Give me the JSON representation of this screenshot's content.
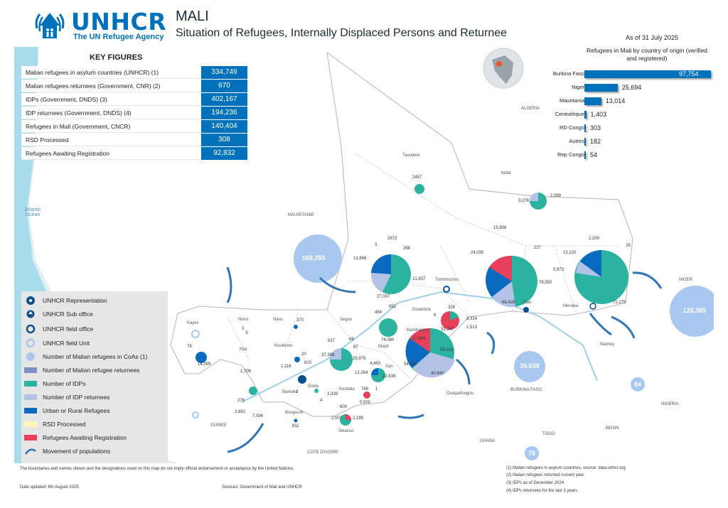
{
  "header": {
    "brand": "UNHCR",
    "tagline": "The UN Refugee Agency",
    "country": "MALI",
    "subtitle": "Situation of Refugees, Internally Displaced Persons and Returnee",
    "as_of": "As of 31 July 2025"
  },
  "key_figures": {
    "title": "KEY FIGURES",
    "rows": [
      {
        "label": "Malian refugees in asylum countries (UNHCR) (1)",
        "value": "334,749"
      },
      {
        "label": "Malian refugees returnees (Government, CNR) (2)",
        "value": "670"
      },
      {
        "label": "IDPs (Government, DNDS) (3)",
        "value": "402,167"
      },
      {
        "label": "IDP returnees (Government, DNDS) (4)",
        "value": "194,236"
      },
      {
        "label": "Refugees in Mali (Government, CNCR)",
        "value": "140,404"
      },
      {
        "label": "RSD Processed",
        "value": "308"
      },
      {
        "label": "Refugees Awaiting Registration",
        "value": "92,832"
      }
    ]
  },
  "origin_chart": {
    "title": "Refugees in Mali by country of origin (verified and registered)",
    "rows": [
      {
        "label": "Burkina Faso",
        "value": "97,754",
        "amount": 97754
      },
      {
        "label": "Niger",
        "value": "25,694",
        "amount": 25694
      },
      {
        "label": "Mauritania",
        "value": "13,014",
        "amount": 13014
      },
      {
        "label": "Centrafrique",
        "value": "1,403",
        "amount": 1403
      },
      {
        "label": "RD Congo",
        "value": "303",
        "amount": 303
      },
      {
        "label": "Autres",
        "value": "182",
        "amount": 182
      },
      {
        "label": "Rep Congo",
        "value": "54",
        "amount": 54
      }
    ]
  },
  "legend": {
    "items": [
      {
        "label": "UNHCR Representation"
      },
      {
        "label": "UNHCR Sub office"
      },
      {
        "label": "UNHCR field office"
      },
      {
        "label": "UNHCR field Unit"
      },
      {
        "label": "Number of Malian refugees in CoAs (1)"
      },
      {
        "label": "Number of Malian refugee returnees"
      },
      {
        "label": "Number of IDPs"
      },
      {
        "label": "Number of IDP returnees"
      },
      {
        "label": "Urban or Rural Refugees"
      },
      {
        "label": "RSD Processed"
      },
      {
        "label": "Refugees Awaiting Registration"
      },
      {
        "label": "Movement of populations"
      }
    ]
  },
  "colors": {
    "idps": "#2bb3a0",
    "idp_returnees": "#b3c3e8",
    "urban_rural_refugees": "#0a6abf",
    "awaiting_registration": "#e8405a",
    "rsd": "#fff6c0",
    "refugees_coa": "#a9c8ef",
    "returnees": "#8090c0",
    "unhcr": "#0b4f8c"
  },
  "map": {
    "countries": [
      "ALGERIA",
      "MAURITANIE",
      "NIGER",
      "BURKINA FASO",
      "GUINEE",
      "COTE D'IVOIRE",
      "GHANA",
      "TOGO",
      "BENIN",
      "NIGERIA"
    ],
    "sea": "Atlantic Ocean",
    "regions": [
      "Taoudeni",
      "Kidal",
      "Tombouctou",
      "Gao",
      "Menaka",
      "Mopti",
      "Segou",
      "Kayes",
      "Nioro",
      "Nara",
      "Kita",
      "Koulikoro",
      "Bamako",
      "Dioila",
      "Bougouni",
      "Sikasso",
      "Koutiala",
      "San",
      "Douentza",
      "Bandiagara",
      "Niamey",
      "Ouagadougou"
    ],
    "coa_bubbles": [
      "169,355",
      "125,385",
      "39,638",
      "84",
      "78"
    ],
    "values": [
      "2457",
      "3,276",
      "2,399",
      "2672",
      "3",
      "368",
      "13,868",
      "21,937",
      "27,007",
      "15,808",
      "227",
      "24,035",
      "78,550",
      "68,428",
      "2,200",
      "29",
      "15,220",
      "5,973",
      "72,275",
      "852",
      "484",
      "74,080",
      "329",
      "6",
      "8,314",
      "33,147",
      "1,513",
      "27,404",
      "58,013",
      "54,186",
      "40,640",
      "637",
      "68",
      "67",
      "37,388",
      "29,979",
      "4,463",
      "12,264",
      "22,838",
      "789",
      "1",
      "5,500",
      "370",
      "3",
      "3",
      "78",
      "14,399",
      "20",
      "1,116",
      "810",
      "1,706",
      "278",
      "2,882",
      "7,094",
      "2",
      "3,339",
      "4",
      "600",
      "2,007",
      "2,199",
      "811"
    ]
  },
  "footer": {
    "disclaimer": "The boundaries and names shown and the designations used on this map do not imply official endorsement or acceptance by the United Nations.",
    "date_updated": "Date updated: 6th August 2025",
    "sources": "Sources: Government of Mali and UNHCR",
    "footnotes": [
      "(1) Malian refugees in asylum countries, source: data.unhcr.org",
      "(2) Malian refugees returned current year",
      "(3) IDPs as of December 2024",
      "(4) IDPs returnees for the last 3 years"
    ]
  }
}
